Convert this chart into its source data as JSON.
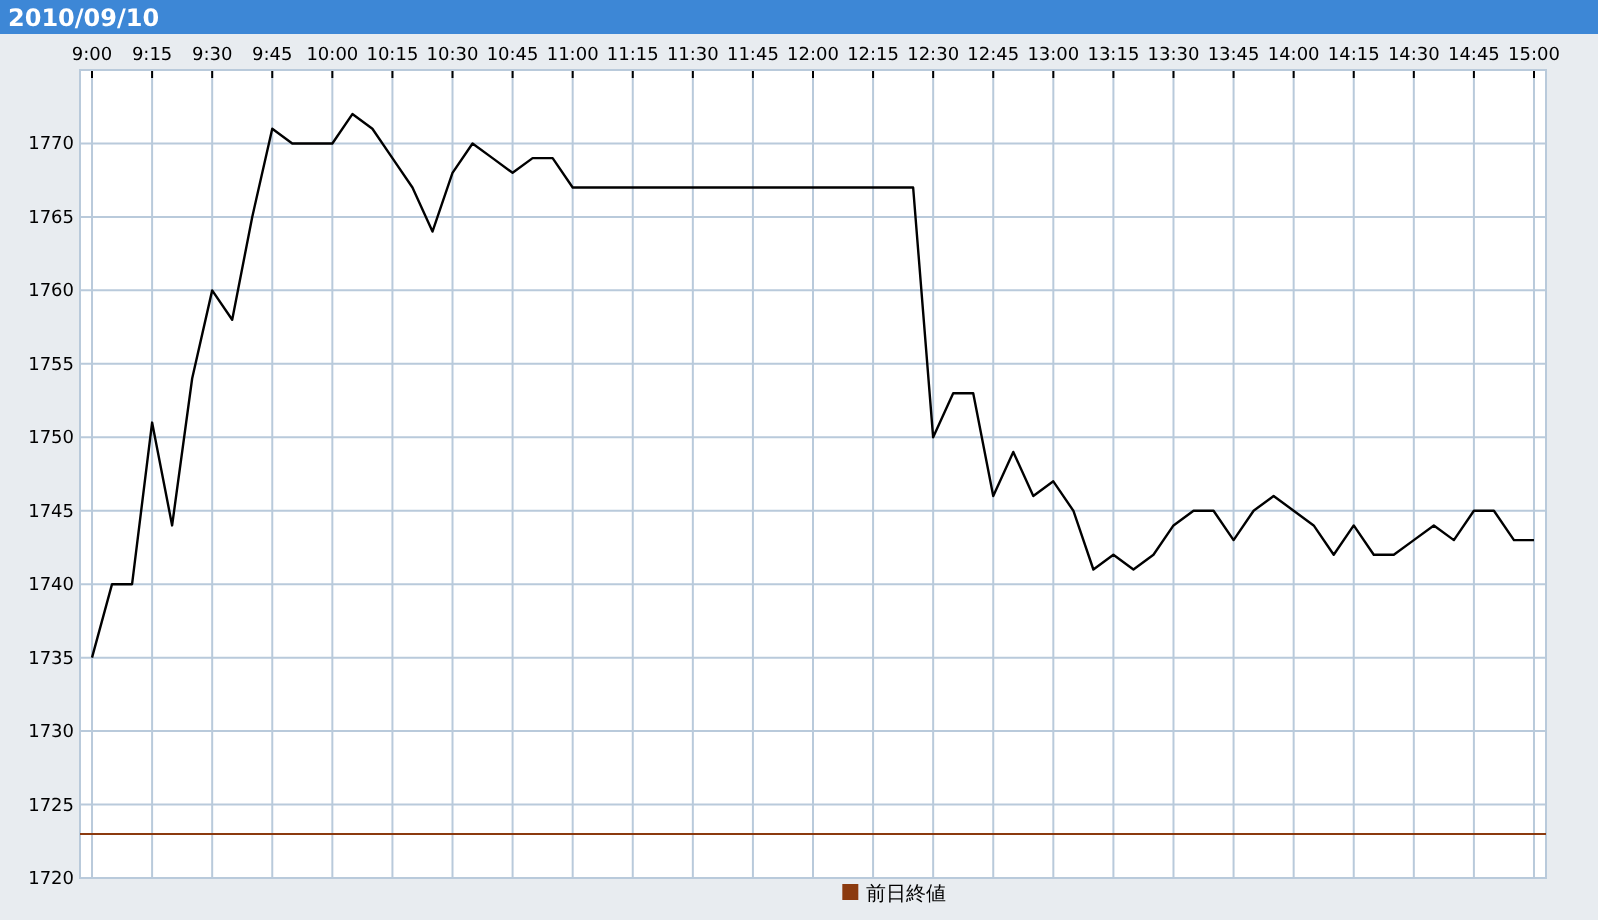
{
  "chart_data": {
    "type": "line",
    "title": "2010/09/10",
    "x": [
      "2010-09-10T09:00",
      "2010-09-10T09:05",
      "2010-09-10T09:10",
      "2010-09-10T09:15",
      "2010-09-10T09:20",
      "2010-09-10T09:25",
      "2010-09-10T09:30",
      "2010-09-10T09:35",
      "2010-09-10T09:40",
      "2010-09-10T09:45",
      "2010-09-10T09:50",
      "2010-09-10T09:55",
      "2010-09-10T10:00",
      "2010-09-10T10:05",
      "2010-09-10T10:10",
      "2010-09-10T10:15",
      "2010-09-10T10:20",
      "2010-09-10T10:25",
      "2010-09-10T10:30",
      "2010-09-10T10:35",
      "2010-09-10T10:40",
      "2010-09-10T10:45",
      "2010-09-10T10:50",
      "2010-09-10T10:55",
      "2010-09-10T11:00",
      "2010-09-10T11:30",
      "2010-09-10T12:25",
      "2010-09-10T12:30",
      "2010-09-10T12:35",
      "2010-09-10T12:40",
      "2010-09-10T12:45",
      "2010-09-10T12:50",
      "2010-09-10T12:55",
      "2010-09-10T13:00",
      "2010-09-10T13:05",
      "2010-09-10T13:10",
      "2010-09-10T13:15",
      "2010-09-10T13:20",
      "2010-09-10T13:25",
      "2010-09-10T13:30",
      "2010-09-10T13:35",
      "2010-09-10T13:40",
      "2010-09-10T13:45",
      "2010-09-10T13:50",
      "2010-09-10T13:55",
      "2010-09-10T14:00",
      "2010-09-10T14:05",
      "2010-09-10T14:10",
      "2010-09-10T14:15",
      "2010-09-10T14:20",
      "2010-09-10T14:25",
      "2010-09-10T14:30",
      "2010-09-10T14:35",
      "2010-09-10T14:40",
      "2010-09-10T14:45",
      "2010-09-10T14:50",
      "2010-09-10T14:55",
      "2010-09-10T15:00"
    ],
    "series": [
      {
        "color": "#000000",
        "values": [
          1735,
          1740,
          1740,
          1751,
          1744,
          1754,
          1760,
          1758,
          1765,
          1771,
          1770,
          1770,
          1770,
          1772,
          1771,
          1769,
          1767,
          1764,
          1768,
          1770,
          1769,
          1768,
          1769,
          1769,
          1767,
          1767,
          1767,
          1750,
          1753,
          1753,
          1746,
          1749,
          1746,
          1747,
          1745,
          1741,
          1742,
          1741,
          1742,
          1744,
          1745,
          1745,
          1743,
          1745,
          1746,
          1745,
          1744,
          1742,
          1744,
          1742,
          1742,
          1743,
          1744,
          1743,
          1745,
          1745,
          1743,
          1743
        ]
      }
    ],
    "xlim": [
      "2010-09-10T08:57",
      "2010-09-10T15:03"
    ],
    "xticks": [
      {
        "value": "2010-09-10T09:00",
        "label": "9:00"
      },
      {
        "value": "2010-09-10T09:15",
        "label": "9:15"
      },
      {
        "value": "2010-09-10T09:30",
        "label": "9:30"
      },
      {
        "value": "2010-09-10T09:45",
        "label": "9:45"
      },
      {
        "value": "2010-09-10T10:00",
        "label": "10:00"
      },
      {
        "value": "2010-09-10T10:15",
        "label": "10:15"
      },
      {
        "value": "2010-09-10T10:30",
        "label": "10:30"
      },
      {
        "value": "2010-09-10T10:45",
        "label": "10:45"
      },
      {
        "value": "2010-09-10T11:00",
        "label": "11:00"
      },
      {
        "value": "2010-09-10T11:15",
        "label": "11:15"
      },
      {
        "value": "2010-09-10T11:30",
        "label": "11:30"
      },
      {
        "value": "2010-09-10T11:45",
        "label": "11:45"
      },
      {
        "value": "2010-09-10T12:00",
        "label": "12:00"
      },
      {
        "value": "2010-09-10T12:15",
        "label": "12:15"
      },
      {
        "value": "2010-09-10T12:30",
        "label": "12:30"
      },
      {
        "value": "2010-09-10T12:45",
        "label": "12:45"
      },
      {
        "value": "2010-09-10T13:00",
        "label": "13:00"
      },
      {
        "value": "2010-09-10T13:15",
        "label": "13:15"
      },
      {
        "value": "2010-09-10T13:30",
        "label": "13:30"
      },
      {
        "value": "2010-09-10T13:45",
        "label": "13:45"
      },
      {
        "value": "2010-09-10T14:00",
        "label": "14:00"
      },
      {
        "value": "2010-09-10T14:15",
        "label": "14:15"
      },
      {
        "value": "2010-09-10T14:30",
        "label": "14:30"
      },
      {
        "value": "2010-09-10T14:45",
        "label": "14:45"
      },
      {
        "value": "2010-09-10T15:00",
        "label": "15:00"
      }
    ],
    "ylim": [
      1720,
      1775
    ],
    "yticks": [
      1720,
      1725,
      1730,
      1735,
      1740,
      1745,
      1750,
      1755,
      1760,
      1765,
      1770
    ],
    "ref_lines": [
      {
        "axis": "y",
        "value": 1723,
        "label": "前日終値",
        "color": "#8b3a0f"
      }
    ],
    "grid": true,
    "legend": "bottom"
  }
}
